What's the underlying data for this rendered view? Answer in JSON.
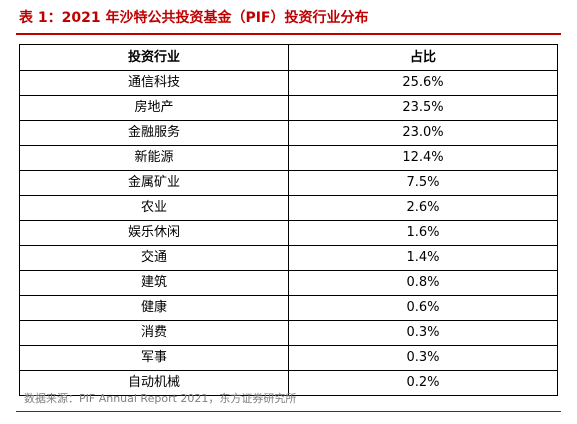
{
  "title": "表 1：2021 年沙特公共投资基金（PIF）投资行业分布",
  "table": {
    "headers": [
      "投资行业",
      "占比"
    ],
    "rows": [
      {
        "industry": "通信科技",
        "share": "25.6%"
      },
      {
        "industry": "房地产",
        "share": "23.5%"
      },
      {
        "industry": "金融服务",
        "share": "23.0%"
      },
      {
        "industry": "新能源",
        "share": "12.4%"
      },
      {
        "industry": "金属矿业",
        "share": "7.5%"
      },
      {
        "industry": "农业",
        "share": "2.6%"
      },
      {
        "industry": "娱乐休闲",
        "share": "1.6%"
      },
      {
        "industry": "交通",
        "share": "1.4%"
      },
      {
        "industry": "建筑",
        "share": "0.8%"
      },
      {
        "industry": "健康",
        "share": "0.6%"
      },
      {
        "industry": "消费",
        "share": "0.3%"
      },
      {
        "industry": "军事",
        "share": "0.3%"
      },
      {
        "industry": "自动机械",
        "share": "0.2%"
      }
    ]
  },
  "source": "数据来源：PIF Annual Report 2021，东方证券研究所",
  "colors": {
    "accent": "#c00000",
    "source_text": "#7f7f7f"
  }
}
